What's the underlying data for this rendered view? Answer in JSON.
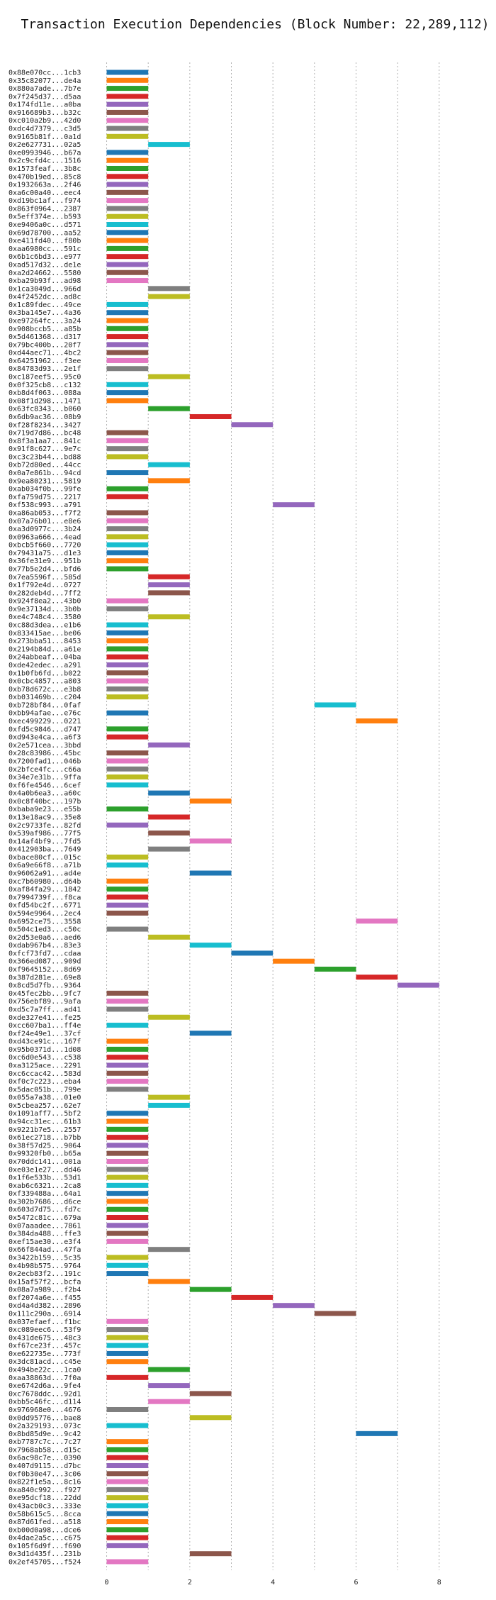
{
  "chart_data": {
    "type": "bar",
    "orientation": "horizontal-gantt",
    "title": "Transaction Execution Dependencies (Block Number: 22,289,112)",
    "xlabel": "",
    "ylabel": "",
    "xlim": [
      -0.35,
      8.6
    ],
    "x_ticks": [
      "0",
      "2",
      "4",
      "6",
      "8"
    ],
    "x_tick_values": [
      0,
      2,
      4,
      6,
      8
    ],
    "grid": "vertical dashed",
    "legend": "none",
    "palette": [
      "#1f77b4",
      "#ff7f0e",
      "#2ca02c",
      "#d62728",
      "#9467bd",
      "#8c564b",
      "#e377c2",
      "#7f7f7f",
      "#bcbd22",
      "#17becf"
    ],
    "bars": [
      {
        "label": "0x88e070cc...1cb3",
        "start": 0,
        "end": 1
      },
      {
        "label": "0x35c82077...de4a",
        "start": 0,
        "end": 1
      },
      {
        "label": "0x880a7ade...7b7e",
        "start": 0,
        "end": 1
      },
      {
        "label": "0x7f245d37...d5aa",
        "start": 0,
        "end": 1
      },
      {
        "label": "0x174fd11e...a0ba",
        "start": 0,
        "end": 1
      },
      {
        "label": "0x916689b3...b32c",
        "start": 0,
        "end": 1
      },
      {
        "label": "0xc010a2b9...42d0",
        "start": 0,
        "end": 1
      },
      {
        "label": "0xdc4d7379...c3d5",
        "start": 0,
        "end": 1
      },
      {
        "label": "0x9165b81f...0a1d",
        "start": 0,
        "end": 1
      },
      {
        "label": "0x2e627731...02a5",
        "start": 1,
        "end": 2
      },
      {
        "label": "0xe0993946...b67a",
        "start": 0,
        "end": 1
      },
      {
        "label": "0x2c9cfd4c...1516",
        "start": 0,
        "end": 1
      },
      {
        "label": "0x1573feaf...3b8c",
        "start": 0,
        "end": 1
      },
      {
        "label": "0x470b19ed...85c8",
        "start": 0,
        "end": 1
      },
      {
        "label": "0x1932663a...2f46",
        "start": 0,
        "end": 1
      },
      {
        "label": "0xa6c00a40...eec4",
        "start": 0,
        "end": 1
      },
      {
        "label": "0xd19bc1af...f974",
        "start": 0,
        "end": 1
      },
      {
        "label": "0x863f0964...2387",
        "start": 0,
        "end": 1
      },
      {
        "label": "0x5eff374e...b593",
        "start": 0,
        "end": 1
      },
      {
        "label": "0xe9406a0c...d571",
        "start": 0,
        "end": 1
      },
      {
        "label": "0x69d78700...aa52",
        "start": 0,
        "end": 1
      },
      {
        "label": "0xe411fd40...f80b",
        "start": 0,
        "end": 1
      },
      {
        "label": "0xaa6980cc...591c",
        "start": 0,
        "end": 1
      },
      {
        "label": "0x6b1c6bd3...e977",
        "start": 0,
        "end": 1
      },
      {
        "label": "0xad517d32...de1e",
        "start": 0,
        "end": 1
      },
      {
        "label": "0xa2d24662...5580",
        "start": 0,
        "end": 1
      },
      {
        "label": "0xba29b93f...ad98",
        "start": 0,
        "end": 1
      },
      {
        "label": "0x1ca3049d...966d",
        "start": 1,
        "end": 2
      },
      {
        "label": "0x4f2452dc...ad8c",
        "start": 1,
        "end": 2
      },
      {
        "label": "0x1c89fdec...49ce",
        "start": 0,
        "end": 1
      },
      {
        "label": "0x3ba145e7...4a36",
        "start": 0,
        "end": 1
      },
      {
        "label": "0xe97264fc...3a24",
        "start": 0,
        "end": 1
      },
      {
        "label": "0x908bccb5...a85b",
        "start": 0,
        "end": 1
      },
      {
        "label": "0x5d461368...d317",
        "start": 0,
        "end": 1
      },
      {
        "label": "0x79bc400b...20f7",
        "start": 0,
        "end": 1
      },
      {
        "label": "0xd44aec71...4bc2",
        "start": 0,
        "end": 1
      },
      {
        "label": "0x64251962...f3ee",
        "start": 0,
        "end": 1
      },
      {
        "label": "0x84783d93...2e1f",
        "start": 0,
        "end": 1
      },
      {
        "label": "0xc187eef5...95c0",
        "start": 1,
        "end": 2
      },
      {
        "label": "0x0f325cb8...c132",
        "start": 0,
        "end": 1
      },
      {
        "label": "0xb8d4f063...088a",
        "start": 0,
        "end": 1
      },
      {
        "label": "0x08f1d298...1471",
        "start": 0,
        "end": 1
      },
      {
        "label": "0x63fc8343...b060",
        "start": 1,
        "end": 2
      },
      {
        "label": "0x6db9ac36...08b9",
        "start": 2,
        "end": 3
      },
      {
        "label": "0xf28f8234...3427",
        "start": 3,
        "end": 4
      },
      {
        "label": "0x719d7d86...bc48",
        "start": 0,
        "end": 1
      },
      {
        "label": "0x8f3a1aa7...841c",
        "start": 0,
        "end": 1
      },
      {
        "label": "0x91f8c627...9e7c",
        "start": 0,
        "end": 1
      },
      {
        "label": "0xc3c23b44...bd88",
        "start": 0,
        "end": 1
      },
      {
        "label": "0xb72d80ed...44cc",
        "start": 1,
        "end": 2
      },
      {
        "label": "0x0a7e861b...94cd",
        "start": 0,
        "end": 1
      },
      {
        "label": "0x9ea80231...5819",
        "start": 1,
        "end": 2
      },
      {
        "label": "0xab034f0b...99fe",
        "start": 0,
        "end": 1
      },
      {
        "label": "0xfa759d75...2217",
        "start": 0,
        "end": 1
      },
      {
        "label": "0xf538c993...a791",
        "start": 4,
        "end": 5
      },
      {
        "label": "0xa86ab053...f7f2",
        "start": 0,
        "end": 1
      },
      {
        "label": "0x07a76b01...e8e6",
        "start": 0,
        "end": 1
      },
      {
        "label": "0xa3d0977c...3b24",
        "start": 0,
        "end": 1
      },
      {
        "label": "0x0963a666...4ead",
        "start": 0,
        "end": 1
      },
      {
        "label": "0xbcb5f660...7720",
        "start": 0,
        "end": 1
      },
      {
        "label": "0x79431a75...d1e3",
        "start": 0,
        "end": 1
      },
      {
        "label": "0x36fe31e9...951b",
        "start": 0,
        "end": 1
      },
      {
        "label": "0x77b5e2d4...bfd6",
        "start": 0,
        "end": 1
      },
      {
        "label": "0x7ea5596f...585d",
        "start": 1,
        "end": 2
      },
      {
        "label": "0x1f792e4d...0727",
        "start": 1,
        "end": 2
      },
      {
        "label": "0x282deb4d...7ff2",
        "start": 1,
        "end": 2
      },
      {
        "label": "0x924f8ea2...43b0",
        "start": 0,
        "end": 1
      },
      {
        "label": "0x9e37134d...3b0b",
        "start": 0,
        "end": 1
      },
      {
        "label": "0xe4c748c4...3580",
        "start": 1,
        "end": 2
      },
      {
        "label": "0xc88d3dea...e1b6",
        "start": 0,
        "end": 1
      },
      {
        "label": "0x833415ae...be06",
        "start": 0,
        "end": 1
      },
      {
        "label": "0x273bba51...8453",
        "start": 0,
        "end": 1
      },
      {
        "label": "0x2194b84d...a61e",
        "start": 0,
        "end": 1
      },
      {
        "label": "0x24abbeaf...04ba",
        "start": 0,
        "end": 1
      },
      {
        "label": "0xde42edec...a291",
        "start": 0,
        "end": 1
      },
      {
        "label": "0x1b0fb6fd...b022",
        "start": 0,
        "end": 1
      },
      {
        "label": "0x0cbc4857...a803",
        "start": 0,
        "end": 1
      },
      {
        "label": "0xb78d672c...e3b8",
        "start": 0,
        "end": 1
      },
      {
        "label": "0xb031469b...c204",
        "start": 0,
        "end": 1
      },
      {
        "label": "0xb728bf84...0faf",
        "start": 5,
        "end": 6
      },
      {
        "label": "0xbb94afae...e76c",
        "start": 0,
        "end": 1
      },
      {
        "label": "0xec499229...0221",
        "start": 6,
        "end": 7
      },
      {
        "label": "0xfd5c9846...d747",
        "start": 0,
        "end": 1
      },
      {
        "label": "0xd943e4ca...a6f3",
        "start": 0,
        "end": 1
      },
      {
        "label": "0x2e571cea...3bbd",
        "start": 1,
        "end": 2
      },
      {
        "label": "0x28c83986...45bc",
        "start": 0,
        "end": 1
      },
      {
        "label": "0x7200fad1...046b",
        "start": 0,
        "end": 1
      },
      {
        "label": "0x2bfce4fc...c66a",
        "start": 0,
        "end": 1
      },
      {
        "label": "0x34e7e31b...9ffa",
        "start": 0,
        "end": 1
      },
      {
        "label": "0xf6fe4546...6cef",
        "start": 0,
        "end": 1
      },
      {
        "label": "0x4a0b6ea3...a60c",
        "start": 1,
        "end": 2
      },
      {
        "label": "0x0c8f40bc...197b",
        "start": 2,
        "end": 3
      },
      {
        "label": "0xbaba9e23...e55b",
        "start": 0,
        "end": 1
      },
      {
        "label": "0x13e18ac9...35e8",
        "start": 1,
        "end": 2
      },
      {
        "label": "0x2c9733fe...82fd",
        "start": 0,
        "end": 1
      },
      {
        "label": "0x539af986...77f5",
        "start": 1,
        "end": 2
      },
      {
        "label": "0x14af4bf9...7fd5",
        "start": 2,
        "end": 3
      },
      {
        "label": "0x412903ba...7649",
        "start": 1,
        "end": 2
      },
      {
        "label": "0xbace80cf...015c",
        "start": 0,
        "end": 1
      },
      {
        "label": "0x6a9e66f8...a71b",
        "start": 0,
        "end": 1
      },
      {
        "label": "0x96062a91...ad4e",
        "start": 2,
        "end": 3
      },
      {
        "label": "0xc7b60980...d64b",
        "start": 0,
        "end": 1
      },
      {
        "label": "0xaf84fa29...1842",
        "start": 0,
        "end": 1
      },
      {
        "label": "0x7994739f...f8ca",
        "start": 0,
        "end": 1
      },
      {
        "label": "0xfd54bc2f...6771",
        "start": 0,
        "end": 1
      },
      {
        "label": "0x594e9964...2ec4",
        "start": 0,
        "end": 1
      },
      {
        "label": "0x6952ce75...3558",
        "start": 6,
        "end": 7
      },
      {
        "label": "0x504c1ed3...c50c",
        "start": 0,
        "end": 1
      },
      {
        "label": "0x2d53e0a6...aed6",
        "start": 1,
        "end": 2
      },
      {
        "label": "0xdab967b4...83e3",
        "start": 2,
        "end": 3
      },
      {
        "label": "0xfcf73fd7...cdaa",
        "start": 3,
        "end": 4
      },
      {
        "label": "0x366ed087...909d",
        "start": 4,
        "end": 5
      },
      {
        "label": "0xf9645152...8d69",
        "start": 5,
        "end": 6
      },
      {
        "label": "0x387d281e...69e8",
        "start": 6,
        "end": 7
      },
      {
        "label": "0x8cd5d7fb...9364",
        "start": 7,
        "end": 8
      },
      {
        "label": "0x45fec2bb...9fc7",
        "start": 0,
        "end": 1
      },
      {
        "label": "0x756ebf89...9afa",
        "start": 0,
        "end": 1
      },
      {
        "label": "0xd5c7a7ff...ad41",
        "start": 0,
        "end": 1
      },
      {
        "label": "0xde327e41...fe25",
        "start": 1,
        "end": 2
      },
      {
        "label": "0xcc607ba1...ff4e",
        "start": 0,
        "end": 1
      },
      {
        "label": "0xf24e49e1...37cf",
        "start": 2,
        "end": 3
      },
      {
        "label": "0xd43ce91c...167f",
        "start": 0,
        "end": 1
      },
      {
        "label": "0x95b0371d...1d08",
        "start": 0,
        "end": 1
      },
      {
        "label": "0xc6d0e543...c538",
        "start": 0,
        "end": 1
      },
      {
        "label": "0xa3125ace...2291",
        "start": 0,
        "end": 1
      },
      {
        "label": "0xc6ccac42...583d",
        "start": 0,
        "end": 1
      },
      {
        "label": "0xf0c7c223...eba4",
        "start": 0,
        "end": 1
      },
      {
        "label": "0x5dac051b...799e",
        "start": 0,
        "end": 1
      },
      {
        "label": "0x055a7a38...01e0",
        "start": 1,
        "end": 2
      },
      {
        "label": "0x5cbea257...62e7",
        "start": 1,
        "end": 2
      },
      {
        "label": "0x1091aff7...5bf2",
        "start": 0,
        "end": 1
      },
      {
        "label": "0x94cc31ec...61b3",
        "start": 0,
        "end": 1
      },
      {
        "label": "0x9221b7e5...2557",
        "start": 0,
        "end": 1
      },
      {
        "label": "0x61ec2718...b7bb",
        "start": 0,
        "end": 1
      },
      {
        "label": "0x38f57d25...9064",
        "start": 0,
        "end": 1
      },
      {
        "label": "0x99320fb0...b65a",
        "start": 0,
        "end": 1
      },
      {
        "label": "0x70ddc141...001a",
        "start": 0,
        "end": 1
      },
      {
        "label": "0xe03e1e27...dd46",
        "start": 0,
        "end": 1
      },
      {
        "label": "0x1f6e533b...53d1",
        "start": 0,
        "end": 1
      },
      {
        "label": "0xab6c6321...2ca8",
        "start": 0,
        "end": 1
      },
      {
        "label": "0xf339488a...64a1",
        "start": 0,
        "end": 1
      },
      {
        "label": "0x302b7686...d6ce",
        "start": 0,
        "end": 1
      },
      {
        "label": "0x603d7d75...fd7c",
        "start": 0,
        "end": 1
      },
      {
        "label": "0x5472c81c...679a",
        "start": 0,
        "end": 1
      },
      {
        "label": "0x07aaadee...7861",
        "start": 0,
        "end": 1
      },
      {
        "label": "0x384da488...ffe3",
        "start": 0,
        "end": 1
      },
      {
        "label": "0xef15ae30...e3f4",
        "start": 0,
        "end": 1
      },
      {
        "label": "0x66f844ad...47fa",
        "start": 1,
        "end": 2
      },
      {
        "label": "0x3422b159...5c35",
        "start": 0,
        "end": 1
      },
      {
        "label": "0x4b98b575...9764",
        "start": 0,
        "end": 1
      },
      {
        "label": "0x2ecb83f2...191c",
        "start": 0,
        "end": 1
      },
      {
        "label": "0x15af57f2...bcfa",
        "start": 1,
        "end": 2
      },
      {
        "label": "0x08a7a989...f2b4",
        "start": 2,
        "end": 3
      },
      {
        "label": "0xf2074a6e...f455",
        "start": 3,
        "end": 4
      },
      {
        "label": "0xd4a4d382...2896",
        "start": 4,
        "end": 5
      },
      {
        "label": "0x111c290a...6914",
        "start": 5,
        "end": 6
      },
      {
        "label": "0x037efaef...f1bc",
        "start": 0,
        "end": 1
      },
      {
        "label": "0xc089eec6...53f9",
        "start": 0,
        "end": 1
      },
      {
        "label": "0x431de675...48c3",
        "start": 0,
        "end": 1
      },
      {
        "label": "0xf67ce23f...457c",
        "start": 0,
        "end": 1
      },
      {
        "label": "0xe622735e...773f",
        "start": 0,
        "end": 1
      },
      {
        "label": "0x3dc81acd...c45e",
        "start": 0,
        "end": 1
      },
      {
        "label": "0x494be22c...1ca0",
        "start": 1,
        "end": 2
      },
      {
        "label": "0xaa38863d...7f0a",
        "start": 0,
        "end": 1
      },
      {
        "label": "0xe6742d6a...9fe4",
        "start": 1,
        "end": 2
      },
      {
        "label": "0xc7678ddc...92d1",
        "start": 2,
        "end": 3
      },
      {
        "label": "0xbb5c46fc...d114",
        "start": 1,
        "end": 2
      },
      {
        "label": "0x976968e0...4676",
        "start": 0,
        "end": 1
      },
      {
        "label": "0x0dd95776...bae8",
        "start": 2,
        "end": 3
      },
      {
        "label": "0x2a329193...073c",
        "start": 0,
        "end": 1
      },
      {
        "label": "0x8bd85d9e...9c42",
        "start": 6,
        "end": 7
      },
      {
        "label": "0xb7787c7c...7c27",
        "start": 0,
        "end": 1
      },
      {
        "label": "0x7968ab58...d15c",
        "start": 0,
        "end": 1
      },
      {
        "label": "0x6ac98c7e...0390",
        "start": 0,
        "end": 1
      },
      {
        "label": "0x407d9115...d7bc",
        "start": 0,
        "end": 1
      },
      {
        "label": "0xf0b30e47...3c06",
        "start": 0,
        "end": 1
      },
      {
        "label": "0x822f1e5a...8c16",
        "start": 0,
        "end": 1
      },
      {
        "label": "0xa840c992...f927",
        "start": 0,
        "end": 1
      },
      {
        "label": "0xe95dcf18...22dd",
        "start": 0,
        "end": 1
      },
      {
        "label": "0x43acb0c3...333e",
        "start": 0,
        "end": 1
      },
      {
        "label": "0x58b615c5...8cca",
        "start": 0,
        "end": 1
      },
      {
        "label": "0x87d61fed...a518",
        "start": 0,
        "end": 1
      },
      {
        "label": "0xb00d0a98...dce6",
        "start": 0,
        "end": 1
      },
      {
        "label": "0x4dae2a5c...c675",
        "start": 0,
        "end": 1
      },
      {
        "label": "0x105f6d9f...f690",
        "start": 0,
        "end": 1
      },
      {
        "label": "0x3d1d435f...231b",
        "start": 2,
        "end": 3
      },
      {
        "label": "0x2ef45705...f524",
        "start": 0,
        "end": 1
      }
    ]
  }
}
